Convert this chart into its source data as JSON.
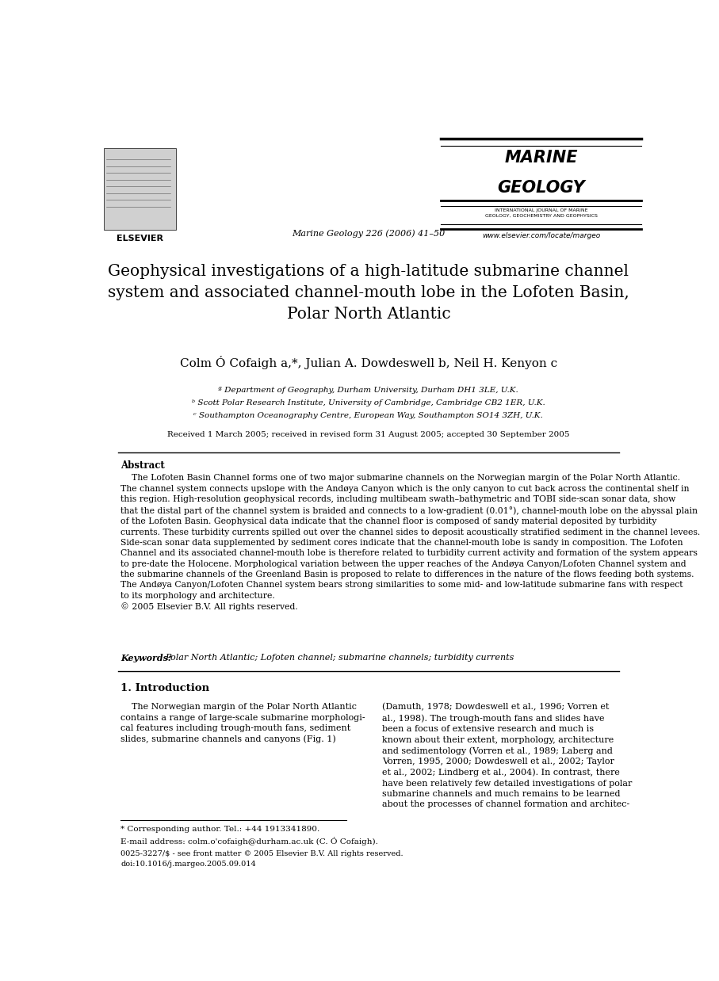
{
  "page_width": 9.07,
  "page_height": 12.38,
  "bg_color": "#ffffff",
  "journal_name_line1": "MARINE",
  "journal_name_line2": "GEOLOGY",
  "journal_subtitle": "INTERNATIONAL JOURNAL OF MARINE\nGEOLOGY, GEOCHEMISTRY AND GEOPHYSICS",
  "journal_url": "www.elsevier.com/locate/margeo",
  "elsevier_text": "ELSEVIER",
  "journal_ref": "Marine Geology 226 (2006) 41–50",
  "paper_title": "Geophysical investigations of a high-latitude submarine channel\nsystem and associated channel-mouth lobe in the Lofoten Basin,\nPolar North Atlantic",
  "authors": "Colm Ó Cofaigh a,*, Julian A. Dowdeswell b, Neil H. Kenyon c",
  "affil_a": "ª Department of Geography, Durham University, Durham DH1 3LE, U.K.",
  "affil_b": "ᵇ Scott Polar Research Institute, University of Cambridge, Cambridge CB2 1ER, U.K.",
  "affil_c": "ᶜ Southampton Oceanography Centre, European Way, Southampton SO14 3ZH, U.K.",
  "received": "Received 1 March 2005; received in revised form 31 August 2005; accepted 30 September 2005",
  "abstract_heading": "Abstract",
  "abstract_text": "    The Lofoten Basin Channel forms one of two major submarine channels on the Norwegian margin of the Polar North Atlantic.\nThe channel system connects upslope with the Andøya Canyon which is the only canyon to cut back across the continental shelf in\nthis region. High-resolution geophysical records, including multibeam swath–bathymetric and TOBI side-scan sonar data, show\nthat the distal part of the channel system is braided and connects to a low-gradient (0.01°), channel-mouth lobe on the abyssal plain\nof the Lofoten Basin. Geophysical data indicate that the channel floor is composed of sandy material deposited by turbidity\ncurrents. These turbidity currents spilled out over the channel sides to deposit acoustically stratified sediment in the channel levees.\nSide-scan sonar data supplemented by sediment cores indicate that the channel-mouth lobe is sandy in composition. The Lofoten\nChannel and its associated channel-mouth lobe is therefore related to turbidity current activity and formation of the system appears\nto pre-date the Holocene. Morphological variation between the upper reaches of the Andøya Canyon/Lofoten Channel system and\nthe submarine channels of the Greenland Basin is proposed to relate to differences in the nature of the flows feeding both systems.\nThe Andøya Canyon/Lofoten Channel system bears strong similarities to some mid- and low-latitude submarine fans with respect\nto its morphology and architecture.\n© 2005 Elsevier B.V. All rights reserved.",
  "keywords_label": "Keywords:",
  "keywords_text": "Polar North Atlantic; Lofoten channel; submarine channels; turbidity currents",
  "section1_heading": "1. Introduction",
  "intro_col1": "    The Norwegian margin of the Polar North Atlantic\ncontains a range of large-scale submarine morphologi-\ncal features including trough-mouth fans, sediment\nslides, submarine channels and canyons (Fig. 1)",
  "intro_col2_text": "(Damuth, 1978; Dowdeswell et al., 1996; Vorren et\nal., 1998). The trough-mouth fans and slides have\nbeen a focus of extensive research and much is\nknown about their extent, morphology, architecture\nand sedimentology (Vorren et al., 1989; Laberg and\nVorren, 1995, 2000; Dowdeswell et al., 2002; Taylor\net al., 2002; Lindberg et al., 2004). In contrast, there\nhave been relatively few detailed investigations of polar\nsubmarine channels and much remains to be learned\nabout the processes of channel formation and architec-",
  "footnote_star": "* Corresponding author. Tel.: +44 1913341890.",
  "footnote_email": "E-mail address: colm.o'cofaigh@durham.ac.uk (C. Ó Cofaigh).",
  "footer_issn": "0025-3227/$ - see front matter © 2005 Elsevier B.V. All rights reserved.",
  "footer_doi": "doi:10.1016/j.margeo.2005.09.014"
}
